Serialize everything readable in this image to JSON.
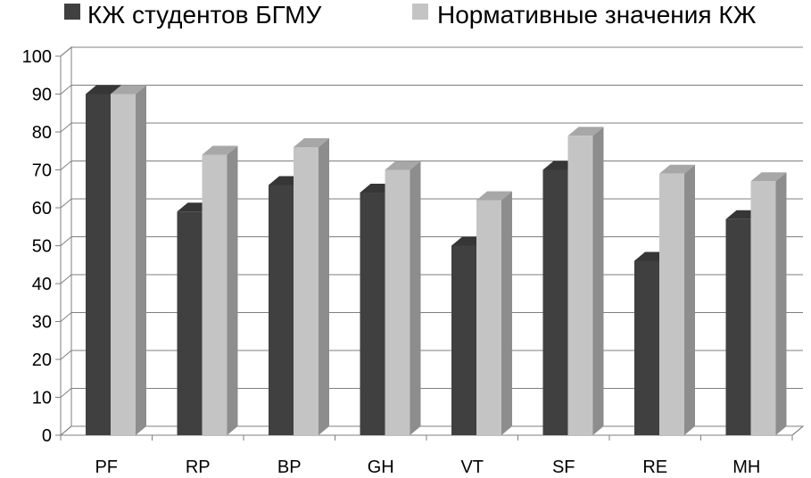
{
  "chart_data": {
    "type": "bar",
    "title": "",
    "xlabel": "",
    "ylabel": "",
    "ylim": [
      0,
      100
    ],
    "yticks": [
      0,
      10,
      20,
      30,
      40,
      50,
      60,
      70,
      80,
      90,
      100
    ],
    "grid": true,
    "legend_position": "top",
    "style": "3d-clustered-column",
    "categories": [
      "PF",
      "RP",
      "BP",
      "GH",
      "VT",
      "SF",
      "RE",
      "MH"
    ],
    "series": [
      {
        "name": "КЖ студентов БГМУ",
        "color": "#404040",
        "values": [
          90,
          59,
          66,
          64,
          50,
          70,
          46,
          57
        ]
      },
      {
        "name": "Нормативные значения КЖ",
        "color": "#c4c4c4",
        "values": [
          90,
          74,
          76,
          70,
          62,
          79,
          69,
          67
        ]
      }
    ]
  }
}
